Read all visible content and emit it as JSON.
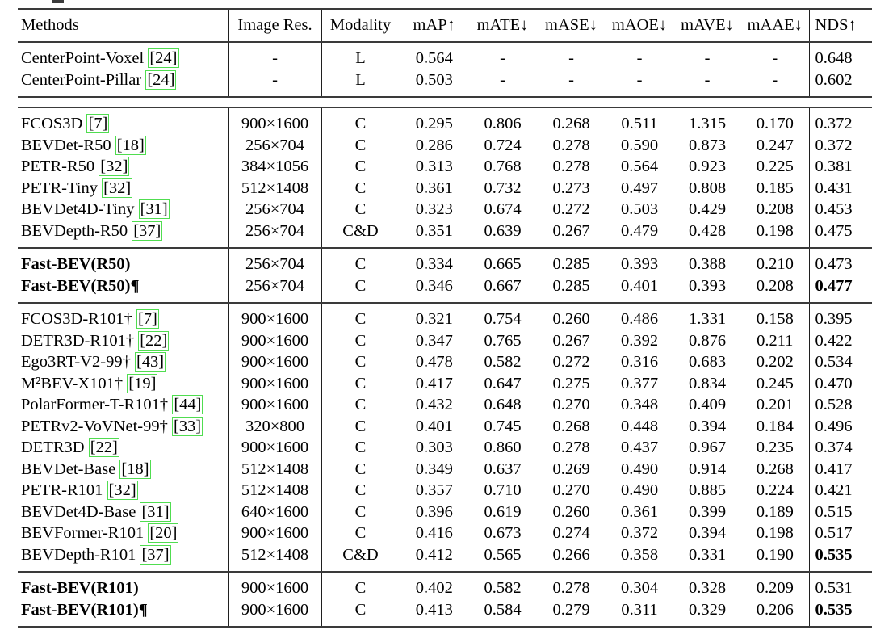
{
  "table": {
    "headers": [
      "Methods",
      "Image Res.",
      "Modality",
      "mAP↑",
      "mATE↓",
      "mASE↓",
      "mAOE↓",
      "mAVE↓",
      "mAAE↓",
      "NDS↑"
    ],
    "header_keys": [
      "methods",
      "image-res",
      "modality",
      "map",
      "mate",
      "mase",
      "maoe",
      "mave",
      "maae",
      "nds"
    ],
    "sections": [
      {
        "rows": [
          {
            "method": "CenterPoint-Voxel",
            "cite": "24",
            "res": "-",
            "mod": "L",
            "vals": [
              "0.564",
              "-",
              "-",
              "-",
              "-",
              "-"
            ],
            "nds": "0.648",
            "bm": false,
            "bn": false
          },
          {
            "method": "CenterPoint-Pillar",
            "cite": "24",
            "res": "-",
            "mod": "L",
            "vals": [
              "0.503",
              "-",
              "-",
              "-",
              "-",
              "-"
            ],
            "nds": "0.602",
            "bm": false,
            "bn": false
          }
        ]
      },
      {
        "gap_before": true,
        "rows": [
          {
            "method": "FCOS3D",
            "cite": "7",
            "res": "900×1600",
            "mod": "C",
            "vals": [
              "0.295",
              "0.806",
              "0.268",
              "0.511",
              "1.315",
              "0.170"
            ],
            "nds": "0.372",
            "bm": false,
            "bn": false
          },
          {
            "method": "BEVDet-R50",
            "cite": "18",
            "res": "256×704",
            "mod": "C",
            "vals": [
              "0.286",
              "0.724",
              "0.278",
              "0.590",
              "0.873",
              "0.247"
            ],
            "nds": "0.372",
            "bm": false,
            "bn": false
          },
          {
            "method": "PETR-R50",
            "cite": "32",
            "res": "384×1056",
            "mod": "C",
            "vals": [
              "0.313",
              "0.768",
              "0.278",
              "0.564",
              "0.923",
              "0.225"
            ],
            "nds": "0.381",
            "bm": false,
            "bn": false
          },
          {
            "method": "PETR-Tiny",
            "cite": "32",
            "res": "512×1408",
            "mod": "C",
            "vals": [
              "0.361",
              "0.732",
              "0.273",
              "0.497",
              "0.808",
              "0.185"
            ],
            "nds": "0.431",
            "bm": false,
            "bn": false
          },
          {
            "method": "BEVDet4D-Tiny",
            "cite": "31",
            "res": "256×704",
            "mod": "C",
            "vals": [
              "0.323",
              "0.674",
              "0.272",
              "0.503",
              "0.429",
              "0.208"
            ],
            "nds": "0.453",
            "bm": false,
            "bn": false
          },
          {
            "method": "BEVDepth-R50",
            "cite": "37",
            "res": "256×704",
            "mod": "C&D",
            "vals": [
              "0.351",
              "0.639",
              "0.267",
              "0.479",
              "0.428",
              "0.198"
            ],
            "nds": "0.475",
            "bm": false,
            "bn": false
          }
        ]
      },
      {
        "rows": [
          {
            "method": "Fast-BEV(R50)",
            "cite": null,
            "res": "256×704",
            "mod": "C",
            "vals": [
              "0.334",
              "0.665",
              "0.285",
              "0.393",
              "0.388",
              "0.210"
            ],
            "nds": "0.473",
            "bm": true,
            "bn": false
          },
          {
            "method": "Fast-BEV(R50)¶",
            "cite": null,
            "res": "256×704",
            "mod": "C",
            "vals": [
              "0.346",
              "0.667",
              "0.285",
              "0.401",
              "0.393",
              "0.208"
            ],
            "nds": "0.477",
            "bm": true,
            "bn": true
          }
        ]
      },
      {
        "rows": [
          {
            "method": "FCOS3D-R101†",
            "cite": "7",
            "res": "900×1600",
            "mod": "C",
            "vals": [
              "0.321",
              "0.754",
              "0.260",
              "0.486",
              "1.331",
              "0.158"
            ],
            "nds": "0.395",
            "bm": false,
            "bn": false
          },
          {
            "method": "DETR3D-R101†",
            "cite": "22",
            "res": "900×1600",
            "mod": "C",
            "vals": [
              "0.347",
              "0.765",
              "0.267",
              "0.392",
              "0.876",
              "0.211"
            ],
            "nds": "0.422",
            "bm": false,
            "bn": false
          },
          {
            "method": "Ego3RT-V2-99†",
            "cite": "43",
            "res": "900×1600",
            "mod": "C",
            "vals": [
              "0.478",
              "0.582",
              "0.272",
              "0.316",
              "0.683",
              "0.202"
            ],
            "nds": "0.534",
            "bm": false,
            "bn": false
          },
          {
            "method": "M²BEV-X101†",
            "cite": "19",
            "res": "900×1600",
            "mod": "C",
            "vals": [
              "0.417",
              "0.647",
              "0.275",
              "0.377",
              "0.834",
              "0.245"
            ],
            "nds": "0.470",
            "bm": false,
            "bn": false
          },
          {
            "method": "PolarFormer-T-R101†",
            "cite": "44",
            "res": "900×1600",
            "mod": "C",
            "vals": [
              "0.432",
              "0.648",
              "0.270",
              "0.348",
              "0.409",
              "0.201"
            ],
            "nds": "0.528",
            "bm": false,
            "bn": false
          },
          {
            "method": "PETRv2-VoVNet-99†",
            "cite": "33",
            "res": "320×800",
            "mod": "C",
            "vals": [
              "0.401",
              "0.745",
              "0.268",
              "0.448",
              "0.394",
              "0.184"
            ],
            "nds": "0.496",
            "bm": false,
            "bn": false
          },
          {
            "method": "DETR3D",
            "cite": "22",
            "res": "900×1600",
            "mod": "C",
            "vals": [
              "0.303",
              "0.860",
              "0.278",
              "0.437",
              "0.967",
              "0.235"
            ],
            "nds": "0.374",
            "bm": false,
            "bn": false
          },
          {
            "method": "BEVDet-Base",
            "cite": "18",
            "res": "512×1408",
            "mod": "C",
            "vals": [
              "0.349",
              "0.637",
              "0.269",
              "0.490",
              "0.914",
              "0.268"
            ],
            "nds": "0.417",
            "bm": false,
            "bn": false
          },
          {
            "method": "PETR-R101",
            "cite": "32",
            "res": "512×1408",
            "mod": "C",
            "vals": [
              "0.357",
              "0.710",
              "0.270",
              "0.490",
              "0.885",
              "0.224"
            ],
            "nds": "0.421",
            "bm": false,
            "bn": false
          },
          {
            "method": "BEVDet4D-Base",
            "cite": "31",
            "res": "640×1600",
            "mod": "C",
            "vals": [
              "0.396",
              "0.619",
              "0.260",
              "0.361",
              "0.399",
              "0.189"
            ],
            "nds": "0.515",
            "bm": false,
            "bn": false
          },
          {
            "method": "BEVFormer-R101",
            "cite": "20",
            "res": "900×1600",
            "mod": "C",
            "vals": [
              "0.416",
              "0.673",
              "0.274",
              "0.372",
              "0.394",
              "0.198"
            ],
            "nds": "0.517",
            "bm": false,
            "bn": false
          },
          {
            "method": "BEVDepth-R101",
            "cite": "37",
            "res": "512×1408",
            "mod": "C&D",
            "vals": [
              "0.412",
              "0.565",
              "0.266",
              "0.358",
              "0.331",
              "0.190"
            ],
            "nds": "0.535",
            "bm": false,
            "bn": true
          }
        ]
      },
      {
        "rows": [
          {
            "method": "Fast-BEV(R101)",
            "cite": null,
            "res": "900×1600",
            "mod": "C",
            "vals": [
              "0.402",
              "0.582",
              "0.278",
              "0.304",
              "0.328",
              "0.209"
            ],
            "nds": "0.531",
            "bm": true,
            "bn": false
          },
          {
            "method": "Fast-BEV(R101)¶",
            "cite": null,
            "res": "900×1600",
            "mod": "C",
            "vals": [
              "0.413",
              "0.584",
              "0.279",
              "0.311",
              "0.329",
              "0.206"
            ],
            "nds": "0.535",
            "bm": true,
            "bn": true
          }
        ]
      }
    ]
  },
  "colors": {
    "citation_box_border": "#50dd50",
    "rule": "#3a3a3a",
    "text": "#000000",
    "background": "#ffffff"
  }
}
